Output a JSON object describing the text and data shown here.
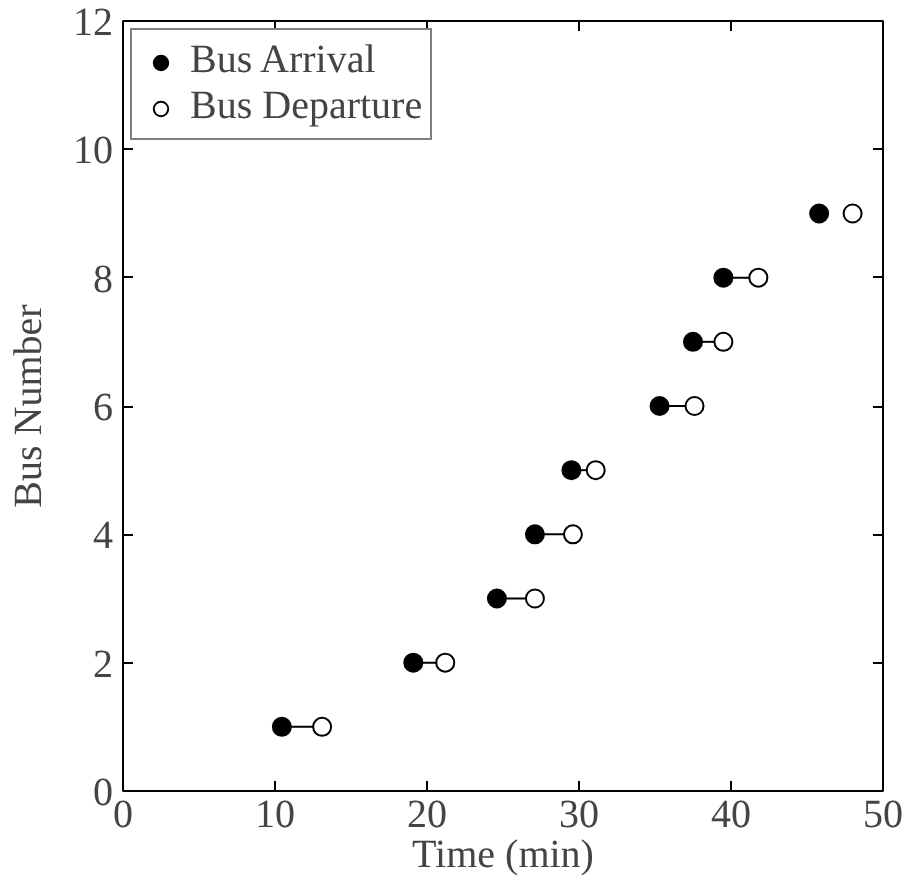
{
  "chart_data": {
    "type": "scatter",
    "xlabel": "Time (min)",
    "ylabel": "Bus Number",
    "xlim": [
      0,
      50
    ],
    "ylim": [
      0,
      12
    ],
    "xticks": [
      0,
      10,
      20,
      30,
      40,
      50
    ],
    "yticks": [
      0,
      2,
      4,
      6,
      8,
      10,
      12
    ],
    "grid": false,
    "legend": "top left",
    "series": [
      {
        "type": "line",
        "color": "#000000",
        "x": [
          10.45,
          13.1
        ],
        "values": [
          1,
          1
        ]
      },
      {
        "type": "line",
        "color": "#000000",
        "x": [
          19.1,
          21.2
        ],
        "values": [
          2,
          2
        ]
      },
      {
        "type": "line",
        "color": "#000000",
        "x": [
          24.6,
          27.1
        ],
        "values": [
          3,
          3
        ]
      },
      {
        "type": "line",
        "color": "#000000",
        "x": [
          27.1,
          29.6
        ],
        "values": [
          4,
          4
        ]
      },
      {
        "type": "line",
        "color": "#000000",
        "x": [
          29.5,
          31.1
        ],
        "values": [
          5,
          5
        ]
      },
      {
        "type": "line",
        "color": "#000000",
        "x": [
          35.3,
          37.6
        ],
        "values": [
          6,
          6
        ]
      },
      {
        "type": "line",
        "color": "#000000",
        "x": [
          37.5,
          39.5
        ],
        "values": [
          7,
          7
        ]
      },
      {
        "type": "line",
        "color": "#000000",
        "x": [
          39.5,
          41.8
        ],
        "values": [
          8,
          8
        ]
      },
      {
        "name": "Bus Arrival",
        "color": "#000000",
        "marker": "circle",
        "x": [
          10.45,
          19.1,
          24.6,
          27.1,
          29.5,
          35.3,
          37.5,
          39.5,
          45.8
        ],
        "values": [
          1,
          2,
          3,
          4,
          5,
          6,
          7,
          8,
          9
        ]
      },
      {
        "name": "Bus Departure",
        "color": "#ffffff",
        "marker": "circle",
        "x": [
          13.1,
          21.2,
          27.1,
          29.6,
          31.1,
          37.6,
          39.5,
          41.8,
          48.0
        ],
        "values": [
          1,
          2,
          3,
          4,
          5,
          6,
          7,
          8,
          9
        ]
      }
    ]
  }
}
